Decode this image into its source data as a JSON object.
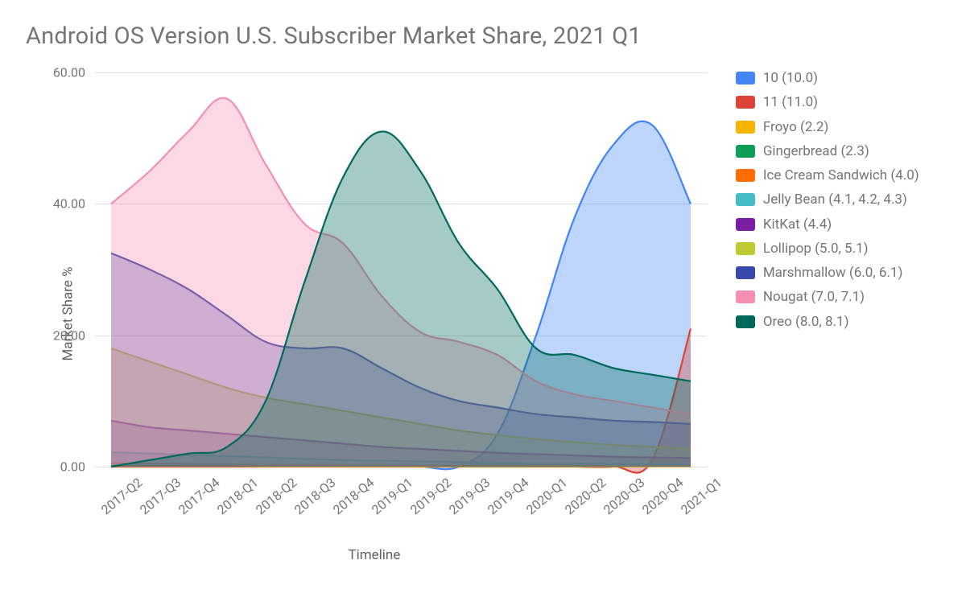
{
  "chart": {
    "title": "Android OS Version U.S. Subscriber Market Share, 2021 Q1",
    "type": "area",
    "xlabel": "Timeline",
    "ylabel": "Market Share %",
    "background_color": "#ffffff",
    "grid_color": "#e0e0e0",
    "title_fontsize": 29,
    "label_fontsize": 17,
    "tick_fontsize": 16,
    "ylim": [
      0,
      60
    ],
    "ytick_step": 20,
    "yticks": [
      "0.00",
      "20.00",
      "40.00",
      "60.00"
    ],
    "categories": [
      "2017-Q2",
      "2017-Q3",
      "2017-Q4",
      "2018-Q1",
      "2018-Q2",
      "2018-Q3",
      "2018-Q4",
      "2019-Q1",
      "2019-Q2",
      "2019-Q3",
      "2019-Q4",
      "2020-Q1",
      "2020-Q2",
      "2020-Q3",
      "2020-Q4",
      "2021-Q1"
    ],
    "fill_opacity": 0.35,
    "line_width": 2.2,
    "series": [
      {
        "name": "10 (10.0)",
        "color": "#4285f4",
        "values": [
          0,
          0,
          0,
          0,
          0,
          0,
          0,
          0,
          0,
          0,
          5,
          20,
          38,
          49,
          52,
          40
        ]
      },
      {
        "name": "11 (11.0)",
        "color": "#db4437",
        "values": [
          0,
          0,
          0,
          0,
          0,
          0,
          0,
          0,
          0,
          0,
          0,
          0,
          0,
          0,
          1,
          21
        ]
      },
      {
        "name": "Froyo (2.2)",
        "color": "#f4b400",
        "values": [
          0.1,
          0.1,
          0.1,
          0.1,
          0.05,
          0.05,
          0.05,
          0.05,
          0.05,
          0.05,
          0.05,
          0.05,
          0.05,
          0.05,
          0.05,
          0.05
        ]
      },
      {
        "name": "Gingerbread (2.3)",
        "color": "#0f9d58",
        "values": [
          0.3,
          0.3,
          0.25,
          0.25,
          0.2,
          0.2,
          0.2,
          0.15,
          0.15,
          0.1,
          0.1,
          0.1,
          0.1,
          0.1,
          0.1,
          0.1
        ]
      },
      {
        "name": "Ice Cream Sandwich (4.0)",
        "color": "#ff6d00",
        "values": [
          0.5,
          0.45,
          0.4,
          0.35,
          0.3,
          0.3,
          0.25,
          0.25,
          0.2,
          0.2,
          0.2,
          0.15,
          0.15,
          0.15,
          0.1,
          0.1
        ]
      },
      {
        "name": "Jelly Bean  (4.1, 4.2, 4.3)",
        "color": "#46bdc6",
        "values": [
          2.2,
          2.0,
          1.8,
          1.6,
          1.4,
          1.2,
          1.0,
          0.9,
          0.8,
          0.7,
          0.6,
          0.5,
          0.5,
          0.4,
          0.4,
          0.3
        ]
      },
      {
        "name": "KitKat (4.4)",
        "color": "#7b1fa2",
        "values": [
          7,
          6,
          5.5,
          5,
          4.5,
          4,
          3.5,
          3,
          2.7,
          2.4,
          2.1,
          1.9,
          1.7,
          1.5,
          1.4,
          1.3
        ]
      },
      {
        "name": "Lollipop (5.0, 5.1)",
        "color": "#c0ca33",
        "values": [
          18,
          16,
          14,
          12,
          10.5,
          9.5,
          8.5,
          7.5,
          6.5,
          5.5,
          4.8,
          4.2,
          3.7,
          3.3,
          3.0,
          2.7
        ]
      },
      {
        "name": "Marshmallow (6.0, 6.1)",
        "color": "#3949ab",
        "values": [
          32.5,
          30,
          27,
          23,
          19,
          18,
          18,
          15,
          12,
          10,
          9,
          8,
          7.5,
          7,
          6.8,
          6.5
        ]
      },
      {
        "name": "Nougat (7.0, 7.1)",
        "color": "#f48fb1",
        "values": [
          40,
          45,
          51,
          56,
          46,
          37,
          34,
          26,
          20.5,
          19,
          17,
          13,
          11,
          10,
          9,
          8
        ]
      },
      {
        "name": "Oreo (8.0, 8.1)",
        "color": "#00695c",
        "values": [
          0,
          1,
          2,
          3,
          10,
          28,
          44,
          51,
          45,
          34,
          27,
          18,
          17,
          15,
          14,
          13
        ]
      }
    ]
  }
}
